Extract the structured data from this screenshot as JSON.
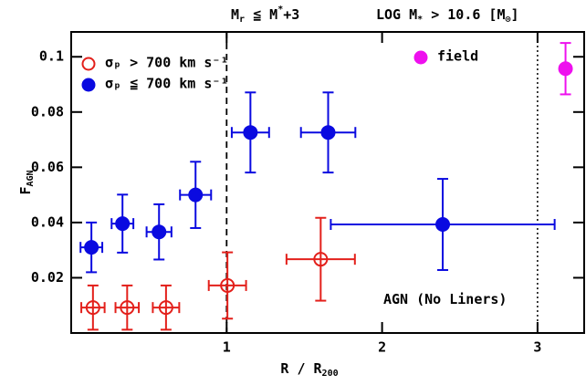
{
  "chart_data": {
    "type": "scatter",
    "annotations": [
      [
        [
          "M",
          "base"
        ],
        [
          "r",
          "sub"
        ],
        [
          " ≦ M",
          "base"
        ],
        [
          "*",
          "sup"
        ],
        [
          "+3",
          "base"
        ]
      ],
      [
        [
          "LOG M",
          "base"
        ],
        [
          "*",
          "sub"
        ],
        [
          " > 10.6 [M",
          "base"
        ],
        [
          "⊙",
          "sub"
        ],
        [
          "]",
          "base"
        ]
      ],
      [
        [
          "AGN (No Liners)",
          "base"
        ]
      ]
    ],
    "xlabel": [
      [
        "R / R",
        "base"
      ],
      [
        "200",
        "sub"
      ]
    ],
    "ylabel": [
      [
        "F",
        "base"
      ],
      [
        "AGN",
        "sub"
      ]
    ],
    "xlim": [
      0,
      3.3
    ],
    "ylim": [
      0,
      0.109
    ],
    "xticks": [
      1,
      2,
      3
    ],
    "yticks": [
      0.02,
      0.04,
      0.06,
      0.08,
      0.1
    ],
    "vlines": [
      {
        "x": 1,
        "style": "dashed"
      },
      {
        "x": 3,
        "style": "dotted"
      }
    ],
    "series": [
      {
        "name": "σₚ > 700 km s⁻¹",
        "color": "#e3201b",
        "marker": "open",
        "x": [
          0.14,
          0.36,
          0.61,
          1.005,
          1.605
        ],
        "values": [
          0.0092,
          0.0092,
          0.0092,
          0.0172,
          0.0267
        ],
        "xerr": [
          0.075,
          0.075,
          0.085,
          0.12,
          0.22
        ],
        "yerr": [
          0.008,
          0.008,
          0.008,
          0.012,
          0.015
        ]
      },
      {
        "name": "σₚ ≦ 700 km s⁻¹",
        "color": "#0a0ae0",
        "marker": "filled",
        "x": [
          0.13,
          0.33,
          0.565,
          0.8,
          1.153,
          1.653,
          2.39
        ],
        "values": [
          0.031,
          0.0396,
          0.0366,
          0.05,
          0.0726,
          0.0726,
          0.0393
        ],
        "xerr": [
          0.07,
          0.07,
          0.08,
          0.1,
          0.12,
          0.175,
          0.72
        ],
        "yerr": [
          0.009,
          0.0105,
          0.01,
          0.012,
          0.0145,
          0.0145,
          0.0165
        ]
      },
      {
        "name": "field",
        "color": "#ee10ee",
        "marker": "filled",
        "x": [
          3.18
        ],
        "values": [
          0.0957
        ],
        "yerr": [
          0.0093
        ]
      }
    ]
  }
}
